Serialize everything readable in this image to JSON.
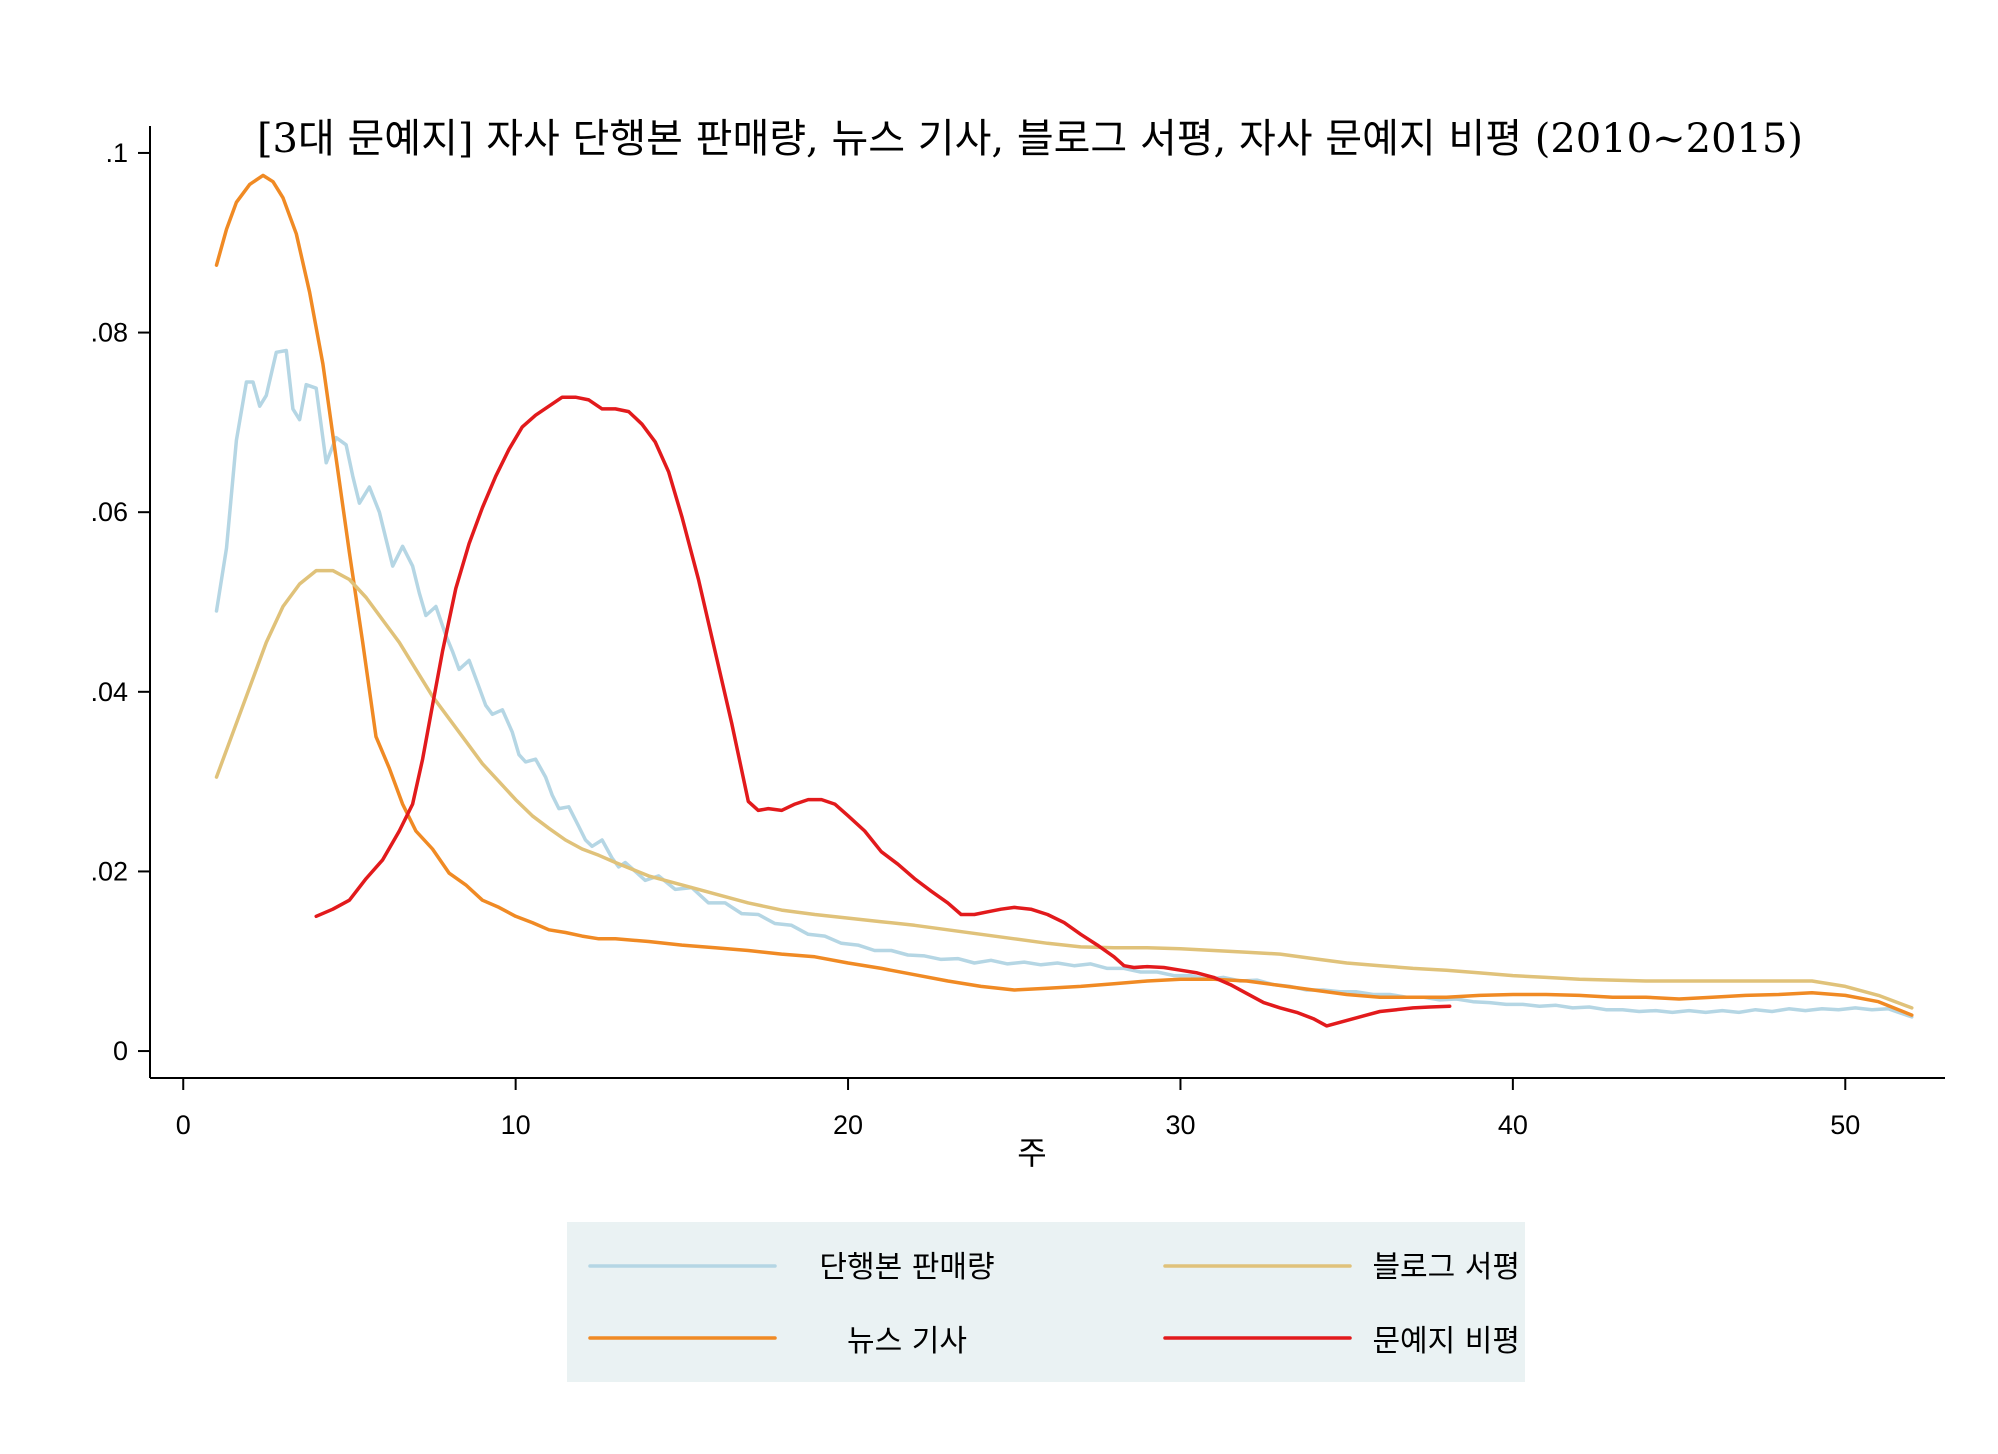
{
  "chart_data": {
    "type": "line",
    "title": "[3대 문예지] 자사 단행본 판매량, 뉴스 기사, 블로그 서평, 자사 문예지 비평 (2010~2015)",
    "xlabel": "주",
    "ylabel": "",
    "xlim": [
      -1,
      53
    ],
    "ylim": [
      -0.003,
      0.103
    ],
    "xticks": [
      0,
      10,
      20,
      30,
      40,
      50
    ],
    "xtick_labels": [
      "0",
      "10",
      "20",
      "30",
      "40",
      "50"
    ],
    "yticks": [
      0,
      0.02,
      0.04,
      0.06,
      0.08,
      0.1
    ],
    "ytick_labels": [
      "0",
      ".02",
      ".04",
      ".06",
      ".08",
      ".1"
    ],
    "grid": false,
    "legend_position": "bottom",
    "series": [
      {
        "name": "단행본 판매량",
        "color": "#b5d6e4",
        "x": [
          1,
          1.3,
          1.6,
          1.9,
          2.1,
          2.3,
          2.5,
          2.8,
          3.1,
          3.3,
          3.5,
          3.7,
          4.0,
          4.3,
          4.6,
          4.9,
          5.1,
          5.3,
          5.6,
          5.9,
          6.1,
          6.3,
          6.6,
          6.9,
          7.1,
          7.3,
          7.6,
          7.9,
          8.1,
          8.3,
          8.6,
          8.9,
          9.1,
          9.3,
          9.6,
          9.9,
          10.1,
          10.3,
          10.6,
          10.9,
          11.1,
          11.3,
          11.6,
          11.9,
          12.1,
          12.3,
          12.6,
          12.9,
          13.1,
          13.3,
          13.6,
          13.9,
          14.3,
          14.8,
          15.3,
          15.8,
          16.3,
          16.8,
          17.3,
          17.8,
          18.3,
          18.8,
          19.3,
          19.8,
          20.3,
          20.8,
          21.3,
          21.8,
          22.3,
          22.8,
          23.3,
          23.8,
          24.3,
          24.8,
          25.3,
          25.8,
          26.3,
          26.8,
          27.3,
          27.8,
          28.3,
          28.8,
          29.3,
          29.8,
          30.3,
          30.8,
          31.3,
          31.8,
          32.3,
          32.8,
          33.3,
          33.8,
          34.3,
          34.8,
          35.3,
          35.8,
          36.3,
          36.8,
          37.3,
          37.8,
          38.3,
          38.8,
          39.3,
          39.8,
          40.3,
          40.8,
          41.3,
          41.8,
          42.3,
          42.8,
          43.3,
          43.8,
          44.3,
          44.8,
          45.3,
          45.8,
          46.3,
          46.8,
          47.3,
          47.8,
          48.3,
          48.8,
          49.3,
          49.8,
          50.3,
          50.8,
          51.3,
          51.6,
          52
        ],
        "y": [
          0.049,
          0.056,
          0.068,
          0.0745,
          0.0745,
          0.0718,
          0.073,
          0.0778,
          0.078,
          0.0715,
          0.0703,
          0.0742,
          0.0738,
          0.0655,
          0.0683,
          0.0675,
          0.064,
          0.061,
          0.0628,
          0.06,
          0.057,
          0.054,
          0.0562,
          0.054,
          0.051,
          0.0485,
          0.0495,
          0.0463,
          0.0445,
          0.0425,
          0.0435,
          0.0405,
          0.0385,
          0.0375,
          0.038,
          0.0355,
          0.033,
          0.0322,
          0.0325,
          0.0305,
          0.0285,
          0.027,
          0.0272,
          0.025,
          0.0235,
          0.0228,
          0.0235,
          0.0215,
          0.0205,
          0.021,
          0.02,
          0.019,
          0.0195,
          0.018,
          0.0182,
          0.0165,
          0.0165,
          0.0153,
          0.0152,
          0.0142,
          0.014,
          0.013,
          0.0128,
          0.012,
          0.0118,
          0.0112,
          0.0112,
          0.0107,
          0.0106,
          0.0102,
          0.0103,
          0.0098,
          0.0101,
          0.0097,
          0.0099,
          0.0096,
          0.0098,
          0.0095,
          0.0097,
          0.0092,
          0.0092,
          0.0088,
          0.0088,
          0.0084,
          0.0084,
          0.008,
          0.0082,
          0.0078,
          0.0079,
          0.0074,
          0.0072,
          0.0068,
          0.0068,
          0.0066,
          0.0066,
          0.0063,
          0.0063,
          0.006,
          0.006,
          0.0057,
          0.0058,
          0.0055,
          0.0054,
          0.0052,
          0.0052,
          0.005,
          0.0051,
          0.0048,
          0.0049,
          0.0046,
          0.0046,
          0.0044,
          0.0045,
          0.0043,
          0.0045,
          0.0043,
          0.0045,
          0.0043,
          0.0046,
          0.0044,
          0.0047,
          0.0045,
          0.0047,
          0.0046,
          0.0048,
          0.0046,
          0.0047,
          0.0043,
          0.0038
        ]
      },
      {
        "name": "뉴스 기사",
        "color": "#f08a24",
        "x": [
          1,
          1.3,
          1.6,
          2.0,
          2.4,
          2.7,
          3.0,
          3.4,
          3.8,
          4.2,
          4.6,
          5.0,
          5.4,
          5.8,
          6.2,
          6.6,
          7.0,
          7.5,
          8.0,
          8.5,
          9.0,
          9.5,
          10.0,
          10.5,
          11.0,
          11.5,
          12.0,
          12.5,
          13.0,
          14.0,
          15.0,
          16.0,
          17.0,
          18.0,
          19.0,
          20.0,
          21.0,
          22.0,
          23.0,
          24.0,
          25.0,
          26.0,
          27.0,
          28.0,
          29.0,
          30.0,
          31.0,
          32.0,
          33.0,
          34.0,
          35.0,
          36.0,
          37.0,
          38.0,
          39.0,
          40.0,
          41.0,
          42.0,
          43.0,
          44.0,
          45.0,
          46.0,
          47.0,
          48.0,
          49.0,
          50.0,
          51.0,
          52
        ],
        "y": [
          0.0875,
          0.0915,
          0.0945,
          0.0965,
          0.0975,
          0.0968,
          0.095,
          0.091,
          0.0845,
          0.0765,
          0.066,
          0.0555,
          0.0455,
          0.035,
          0.0315,
          0.0275,
          0.0245,
          0.0225,
          0.0198,
          0.0185,
          0.0168,
          0.016,
          0.015,
          0.0143,
          0.0135,
          0.0132,
          0.0128,
          0.0125,
          0.0125,
          0.0122,
          0.0118,
          0.0115,
          0.0112,
          0.0108,
          0.0105,
          0.0098,
          0.0092,
          0.0085,
          0.0078,
          0.0072,
          0.0068,
          0.007,
          0.0072,
          0.0075,
          0.0078,
          0.008,
          0.008,
          0.0078,
          0.0073,
          0.0068,
          0.0063,
          0.006,
          0.006,
          0.006,
          0.0062,
          0.0063,
          0.0063,
          0.0062,
          0.006,
          0.006,
          0.0058,
          0.006,
          0.0062,
          0.0063,
          0.0065,
          0.0062,
          0.0055,
          0.004
        ]
      },
      {
        "name": "블로그 서평",
        "color": "#e0c27a",
        "x": [
          1,
          1.5,
          2.0,
          2.5,
          3.0,
          3.5,
          4.0,
          4.5,
          5.0,
          5.5,
          6.0,
          6.5,
          7.0,
          7.5,
          8.0,
          8.5,
          9.0,
          9.5,
          10.0,
          10.5,
          11.0,
          11.5,
          12.0,
          12.5,
          13.0,
          14.0,
          15.0,
          16.0,
          17.0,
          18.0,
          19.0,
          20.0,
          21.0,
          22.0,
          23.0,
          24.0,
          25.0,
          26.0,
          27.0,
          28.0,
          29.0,
          30.0,
          31.0,
          32.0,
          33.0,
          34.0,
          35.0,
          36.0,
          37.0,
          38.0,
          39.0,
          40.0,
          41.0,
          42.0,
          43.0,
          44.0,
          45.0,
          46.0,
          47.0,
          48.0,
          49.0,
          50.0,
          51.0,
          52
        ],
        "y": [
          0.0305,
          0.0355,
          0.0405,
          0.0455,
          0.0495,
          0.052,
          0.0535,
          0.0535,
          0.0525,
          0.0505,
          0.048,
          0.0455,
          0.0425,
          0.0395,
          0.037,
          0.0345,
          0.032,
          0.03,
          0.028,
          0.0262,
          0.0248,
          0.0235,
          0.0225,
          0.0218,
          0.021,
          0.0195,
          0.0185,
          0.0175,
          0.0165,
          0.0157,
          0.0152,
          0.0148,
          0.0144,
          0.014,
          0.0135,
          0.013,
          0.0125,
          0.012,
          0.0116,
          0.0115,
          0.0115,
          0.0114,
          0.0112,
          0.011,
          0.0108,
          0.0103,
          0.0098,
          0.0095,
          0.0092,
          0.009,
          0.0087,
          0.0084,
          0.0082,
          0.008,
          0.0079,
          0.0078,
          0.0078,
          0.0078,
          0.0078,
          0.0078,
          0.0078,
          0.0072,
          0.0062,
          0.0048
        ]
      },
      {
        "name": "문예지 비평",
        "color": "#e21a1c",
        "x": [
          4,
          4.5,
          5,
          5.5,
          6,
          6.5,
          6.9,
          7.2,
          7.5,
          7.8,
          8.2,
          8.6,
          9.0,
          9.4,
          9.8,
          10.2,
          10.6,
          11.0,
          11.4,
          11.8,
          12.2,
          12.6,
          13.0,
          13.4,
          13.8,
          14.2,
          14.6,
          15.0,
          15.5,
          16.0,
          16.5,
          17.0,
          17.3,
          17.6,
          18.0,
          18.4,
          18.8,
          19.2,
          19.6,
          20.0,
          20.5,
          21.0,
          21.5,
          22.0,
          22.5,
          23.0,
          23.4,
          23.8,
          24.2,
          24.6,
          25.0,
          25.5,
          26.0,
          26.5,
          27.0,
          27.5,
          28.0,
          28.3,
          28.6,
          29.0,
          29.5,
          30.0,
          30.5,
          31.0,
          31.5,
          32.0,
          32.5,
          33.0,
          33.5,
          34.0,
          34.4,
          34.8,
          35.2,
          35.6,
          36.0,
          36.5,
          37.0,
          37.5,
          38.1
        ],
        "y": [
          0.015,
          0.0158,
          0.0168,
          0.0192,
          0.0213,
          0.0245,
          0.0275,
          0.0325,
          0.0385,
          0.0445,
          0.0515,
          0.0565,
          0.0605,
          0.064,
          0.067,
          0.0695,
          0.0708,
          0.0718,
          0.0728,
          0.0728,
          0.0725,
          0.0715,
          0.0715,
          0.0712,
          0.0698,
          0.0678,
          0.0645,
          0.0595,
          0.0525,
          0.0445,
          0.0365,
          0.0278,
          0.0268,
          0.027,
          0.0268,
          0.0275,
          0.028,
          0.028,
          0.0275,
          0.0262,
          0.0245,
          0.0222,
          0.0208,
          0.0192,
          0.0178,
          0.0165,
          0.0152,
          0.0152,
          0.0155,
          0.0158,
          0.016,
          0.0158,
          0.0152,
          0.0143,
          0.013,
          0.0118,
          0.0105,
          0.0095,
          0.0093,
          0.0094,
          0.0093,
          0.009,
          0.0087,
          0.0082,
          0.0074,
          0.0064,
          0.0054,
          0.0048,
          0.0043,
          0.0036,
          0.0028,
          0.0032,
          0.0036,
          0.004,
          0.0044,
          0.0046,
          0.0048,
          0.0049,
          0.005
        ]
      }
    ]
  }
}
